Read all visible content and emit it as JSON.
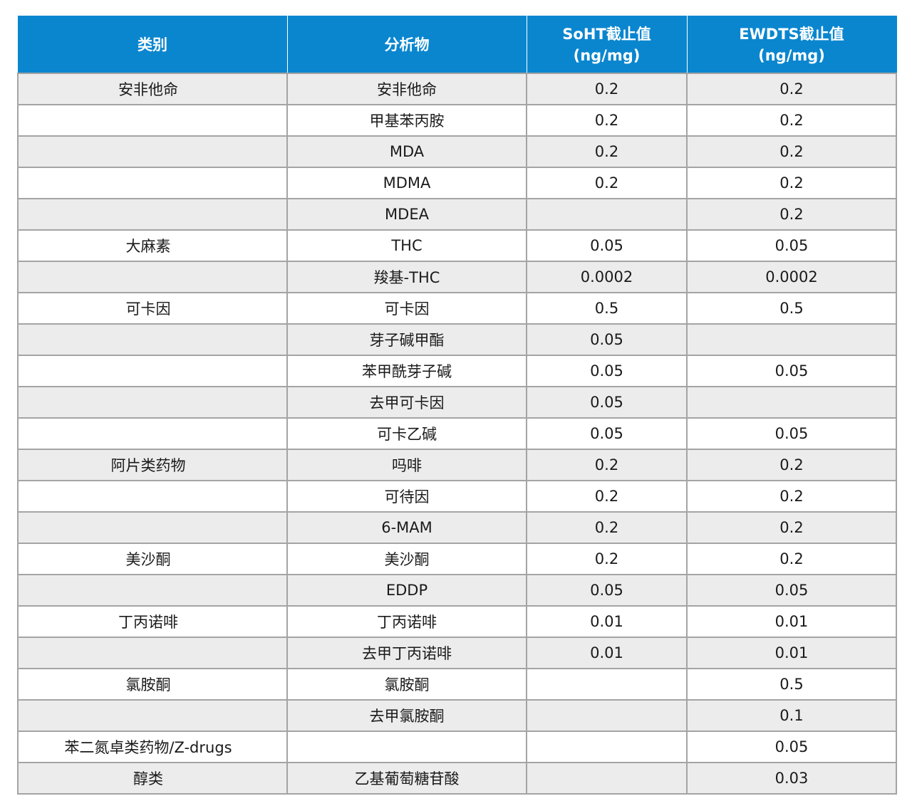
{
  "table": {
    "headers": [
      {
        "lines": [
          "类别"
        ]
      },
      {
        "lines": [
          "分析物"
        ]
      },
      {
        "lines": [
          "SoHT截止值",
          "(ng/mg)"
        ]
      },
      {
        "lines": [
          "EWDTS截止值",
          "(ng/mg)"
        ]
      }
    ],
    "rows": [
      {
        "category": "安非他命",
        "analyte": "安非他命",
        "soht": "0.2",
        "ewdts": "0.2"
      },
      {
        "category": "",
        "analyte": "甲基苯丙胺",
        "soht": "0.2",
        "ewdts": "0.2"
      },
      {
        "category": "",
        "analyte": "MDA",
        "soht": "0.2",
        "ewdts": "0.2"
      },
      {
        "category": "",
        "analyte": "MDMA",
        "soht": "0.2",
        "ewdts": "0.2"
      },
      {
        "category": "",
        "analyte": "MDEA",
        "soht": "",
        "ewdts": "0.2"
      },
      {
        "category": "大麻素",
        "analyte": "THC",
        "soht": "0.05",
        "ewdts": "0.05"
      },
      {
        "category": "",
        "analyte": "羧基-THC",
        "soht": "0.0002",
        "ewdts": "0.0002"
      },
      {
        "category": "可卡因",
        "analyte": "可卡因",
        "soht": "0.5",
        "ewdts": "0.5"
      },
      {
        "category": "",
        "analyte": "芽子碱甲酯",
        "soht": "0.05",
        "ewdts": ""
      },
      {
        "category": "",
        "analyte": "苯甲酰芽子碱",
        "soht": "0.05",
        "ewdts": "0.05"
      },
      {
        "category": "",
        "analyte": "去甲可卡因",
        "soht": "0.05",
        "ewdts": ""
      },
      {
        "category": "",
        "analyte": "可卡乙碱",
        "soht": "0.05",
        "ewdts": "0.05"
      },
      {
        "category": "阿片类药物",
        "analyte": "吗啡",
        "soht": "0.2",
        "ewdts": "0.2"
      },
      {
        "category": "",
        "analyte": "可待因",
        "soht": "0.2",
        "ewdts": "0.2"
      },
      {
        "category": "",
        "analyte": "6-MAM",
        "soht": "0.2",
        "ewdts": "0.2"
      },
      {
        "category": "美沙酮",
        "analyte": "美沙酮",
        "soht": "0.2",
        "ewdts": "0.2"
      },
      {
        "category": "",
        "analyte": "EDDP",
        "soht": "0.05",
        "ewdts": "0.05"
      },
      {
        "category": "丁丙诺啡",
        "analyte": "丁丙诺啡",
        "soht": "0.01",
        "ewdts": "0.01"
      },
      {
        "category": "",
        "analyte": "去甲丁丙诺啡",
        "soht": "0.01",
        "ewdts": "0.01"
      },
      {
        "category": "氯胺酮",
        "analyte": "氯胺酮",
        "soht": "",
        "ewdts": "0.5"
      },
      {
        "category": "",
        "analyte": "去甲氯胺酮",
        "soht": "",
        "ewdts": "0.1"
      },
      {
        "category": "苯二氮卓类药物/Z-drugs",
        "analyte": "",
        "soht": "",
        "ewdts": "0.05"
      },
      {
        "category": "醇类",
        "analyte": "乙基葡萄糖苷酸",
        "soht": "",
        "ewdts": "0.03"
      }
    ]
  },
  "colors": {
    "header_bg": "#0a86cf",
    "header_text": "#ffffff",
    "row_shade": "#ececec",
    "grid_line": "#a4a4a4"
  }
}
